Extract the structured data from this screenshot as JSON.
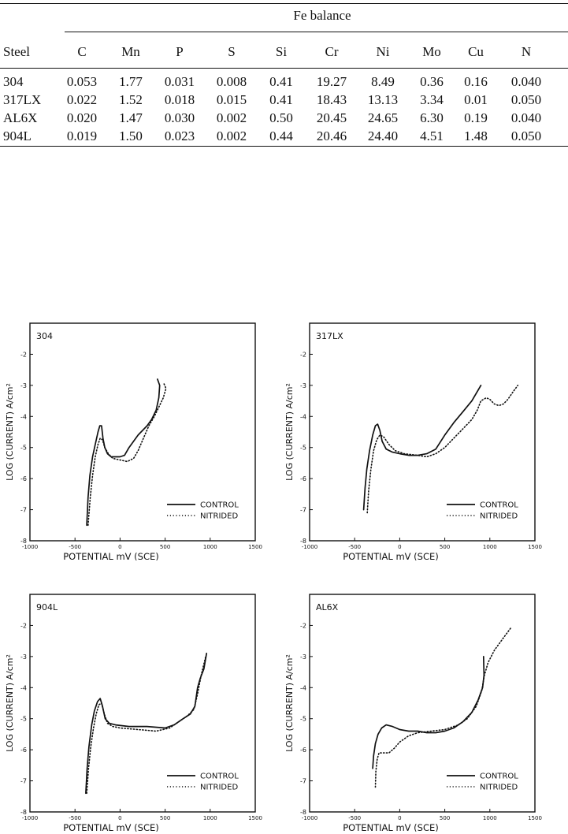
{
  "table": {
    "group_header": "Fe balance",
    "columns": [
      "Steel",
      "C",
      "Mn",
      "P",
      "S",
      "Si",
      "Cr",
      "Ni",
      "Mo",
      "Cu",
      "N"
    ],
    "rows": [
      [
        "304",
        "0.053",
        "1.77",
        "0.031",
        "0.008",
        "0.41",
        "19.27",
        "8.49",
        "0.36",
        "0.16",
        "0.040"
      ],
      [
        "317LX",
        "0.022",
        "1.52",
        "0.018",
        "0.015",
        "0.41",
        "18.43",
        "13.13",
        "3.34",
        "0.01",
        "0.050"
      ],
      [
        "AL6X",
        "0.020",
        "1.47",
        "0.030",
        "0.002",
        "0.50",
        "20.45",
        "24.65",
        "6.30",
        "0.19",
        "0.040"
      ],
      [
        "904L",
        "0.019",
        "1.50",
        "0.023",
        "0.002",
        "0.44",
        "20.46",
        "24.40",
        "4.51",
        "1.48",
        "0.050"
      ]
    ]
  },
  "chart_data": [
    {
      "type": "line",
      "title": "304",
      "xlabel": "POTENTIAL  mV (SCE)",
      "ylabel": "LOG (CURRENT) A/cm²",
      "xlim": [
        -1000,
        1500
      ],
      "ylim": [
        -8,
        -1
      ],
      "xticks": [
        "-1000",
        "-500",
        "0",
        "500",
        "1000",
        "1500"
      ],
      "yticks": [
        "-2",
        "-3",
        "-4",
        "-5",
        "-6",
        "-7",
        "-8"
      ],
      "legend": "bottom-right",
      "series": [
        {
          "name": "CONTROL",
          "style": "solid",
          "points": [
            [
              -370,
              -7.5
            ],
            [
              -355,
              -6.6
            ],
            [
              -335,
              -5.9
            ],
            [
              -305,
              -5.3
            ],
            [
              -275,
              -4.9
            ],
            [
              -245,
              -4.5
            ],
            [
              -225,
              -4.3
            ],
            [
              -205,
              -4.3
            ],
            [
              -190,
              -4.7
            ],
            [
              -170,
              -5.0
            ],
            [
              -140,
              -5.2
            ],
            [
              -100,
              -5.3
            ],
            [
              -50,
              -5.3
            ],
            [
              0,
              -5.3
            ],
            [
              50,
              -5.25
            ],
            [
              100,
              -5.0
            ],
            [
              150,
              -4.8
            ],
            [
              200,
              -4.6
            ],
            [
              250,
              -4.45
            ],
            [
              300,
              -4.3
            ],
            [
              350,
              -4.1
            ],
            [
              400,
              -3.8
            ],
            [
              430,
              -3.4
            ],
            [
              440,
              -3.0
            ],
            [
              415,
              -2.8
            ]
          ]
        },
        {
          "name": "NITRIDED",
          "style": "dotted",
          "points": [
            [
              -355,
              -7.5
            ],
            [
              -330,
              -6.6
            ],
            [
              -305,
              -5.9
            ],
            [
              -275,
              -5.3
            ],
            [
              -245,
              -4.9
            ],
            [
              -220,
              -4.7
            ],
            [
              -195,
              -4.75
            ],
            [
              -170,
              -5.0
            ],
            [
              -130,
              -5.2
            ],
            [
              -80,
              -5.35
            ],
            [
              0,
              -5.4
            ],
            [
              80,
              -5.45
            ],
            [
              150,
              -5.35
            ],
            [
              200,
              -5.1
            ],
            [
              260,
              -4.7
            ],
            [
              320,
              -4.3
            ],
            [
              380,
              -4.0
            ],
            [
              430,
              -3.7
            ],
            [
              480,
              -3.4
            ],
            [
              510,
              -3.1
            ],
            [
              480,
              -2.9
            ]
          ]
        }
      ]
    },
    {
      "type": "line",
      "title": "317LX",
      "xlabel": "POTENTIAL  mV (SCE)",
      "ylabel": "LOG (CURRENT) A/cm²",
      "xlim": [
        -1000,
        1500
      ],
      "ylim": [
        -8,
        -1
      ],
      "xticks": [
        "-1000",
        "-500",
        "0",
        "500",
        "1000",
        "1500"
      ],
      "yticks": [
        "-2",
        "-3",
        "-4",
        "-5",
        "-6",
        "-7",
        "-8"
      ],
      "legend": "bottom-right",
      "series": [
        {
          "name": "CONTROL",
          "style": "solid",
          "points": [
            [
              -400,
              -7.0
            ],
            [
              -385,
              -6.3
            ],
            [
              -365,
              -5.7
            ],
            [
              -335,
              -5.1
            ],
            [
              -300,
              -4.6
            ],
            [
              -270,
              -4.3
            ],
            [
              -245,
              -4.25
            ],
            [
              -220,
              -4.45
            ],
            [
              -195,
              -4.8
            ],
            [
              -150,
              -5.05
            ],
            [
              -80,
              -5.15
            ],
            [
              0,
              -5.2
            ],
            [
              100,
              -5.25
            ],
            [
              200,
              -5.25
            ],
            [
              300,
              -5.2
            ],
            [
              400,
              -5.05
            ],
            [
              500,
              -4.6
            ],
            [
              600,
              -4.2
            ],
            [
              700,
              -3.85
            ],
            [
              800,
              -3.5
            ],
            [
              900,
              -3.0
            ]
          ]
        },
        {
          "name": "NITRIDED",
          "style": "dotted",
          "points": [
            [
              -360,
              -7.1
            ],
            [
              -345,
              -6.4
            ],
            [
              -320,
              -5.7
            ],
            [
              -290,
              -5.1
            ],
            [
              -255,
              -4.75
            ],
            [
              -220,
              -4.6
            ],
            [
              -180,
              -4.65
            ],
            [
              -120,
              -4.9
            ],
            [
              -50,
              -5.1
            ],
            [
              50,
              -5.2
            ],
            [
              200,
              -5.25
            ],
            [
              300,
              -5.3
            ],
            [
              400,
              -5.2
            ],
            [
              500,
              -5.0
            ],
            [
              600,
              -4.7
            ],
            [
              700,
              -4.4
            ],
            [
              800,
              -4.1
            ],
            [
              860,
              -3.8
            ],
            [
              900,
              -3.5
            ],
            [
              960,
              -3.4
            ],
            [
              1000,
              -3.45
            ],
            [
              1050,
              -3.6
            ],
            [
              1100,
              -3.65
            ],
            [
              1150,
              -3.6
            ],
            [
              1200,
              -3.45
            ],
            [
              1260,
              -3.2
            ],
            [
              1310,
              -3.0
            ]
          ]
        }
      ]
    },
    {
      "type": "line",
      "title": "904L",
      "xlabel": "POTENTIAL  mV (SCE)",
      "ylabel": "LOG (CURRENT) A/cm²",
      "xlim": [
        -1000,
        1500
      ],
      "ylim": [
        -8,
        -1
      ],
      "xticks": [
        "-1000",
        "-500",
        "0",
        "500",
        "1000",
        "1500"
      ],
      "yticks": [
        "-2",
        "-3",
        "-4",
        "-5",
        "-6",
        "-7",
        "-8"
      ],
      "legend": "bottom-right",
      "series": [
        {
          "name": "CONTROL",
          "style": "solid",
          "points": [
            [
              -380,
              -7.4
            ],
            [
              -365,
              -6.6
            ],
            [
              -345,
              -5.9
            ],
            [
              -315,
              -5.2
            ],
            [
              -285,
              -4.75
            ],
            [
              -250,
              -4.45
            ],
            [
              -220,
              -4.35
            ],
            [
              -195,
              -4.6
            ],
            [
              -165,
              -5.0
            ],
            [
              -120,
              -5.15
            ],
            [
              -50,
              -5.2
            ],
            [
              100,
              -5.25
            ],
            [
              300,
              -5.25
            ],
            [
              500,
              -5.3
            ],
            [
              600,
              -5.2
            ],
            [
              700,
              -5.0
            ],
            [
              780,
              -4.85
            ],
            [
              830,
              -4.6
            ],
            [
              860,
              -4.0
            ],
            [
              890,
              -3.7
            ],
            [
              930,
              -3.4
            ],
            [
              960,
              -2.9
            ]
          ]
        },
        {
          "name": "NITRIDED",
          "style": "dotted",
          "points": [
            [
              -370,
              -7.4
            ],
            [
              -350,
              -6.6
            ],
            [
              -325,
              -5.9
            ],
            [
              -295,
              -5.3
            ],
            [
              -265,
              -4.85
            ],
            [
              -235,
              -4.55
            ],
            [
              -205,
              -4.5
            ],
            [
              -175,
              -4.85
            ],
            [
              -140,
              -5.15
            ],
            [
              -80,
              -5.25
            ],
            [
              0,
              -5.3
            ],
            [
              200,
              -5.35
            ],
            [
              400,
              -5.4
            ],
            [
              550,
              -5.3
            ],
            [
              650,
              -5.1
            ],
            [
              750,
              -4.9
            ],
            [
              820,
              -4.7
            ],
            [
              860,
              -4.2
            ],
            [
              900,
              -3.6
            ],
            [
              950,
              -3.0
            ]
          ]
        }
      ]
    },
    {
      "type": "line",
      "title": "AL6X",
      "xlabel": "POTENTIAL  mV (SCE)",
      "ylabel": "LOG (CURRENT) A/cm²",
      "xlim": [
        -1000,
        1500
      ],
      "ylim": [
        -8,
        -1
      ],
      "xticks": [
        "-1000",
        "-500",
        "0",
        "500",
        "1000",
        "1500"
      ],
      "yticks": [
        "-2",
        "-3",
        "-4",
        "-5",
        "-6",
        "-7",
        "-8"
      ],
      "legend": "bottom-right",
      "series": [
        {
          "name": "CONTROL",
          "style": "solid",
          "points": [
            [
              -300,
              -6.6
            ],
            [
              -290,
              -6.2
            ],
            [
              -270,
              -5.8
            ],
            [
              -240,
              -5.5
            ],
            [
              -200,
              -5.3
            ],
            [
              -150,
              -5.2
            ],
            [
              -80,
              -5.25
            ],
            [
              0,
              -5.35
            ],
            [
              100,
              -5.4
            ],
            [
              200,
              -5.4
            ],
            [
              300,
              -5.45
            ],
            [
              400,
              -5.45
            ],
            [
              500,
              -5.4
            ],
            [
              600,
              -5.3
            ],
            [
              700,
              -5.1
            ],
            [
              800,
              -4.8
            ],
            [
              870,
              -4.4
            ],
            [
              920,
              -4.0
            ],
            [
              935,
              -3.6
            ],
            [
              930,
              -3.0
            ]
          ]
        },
        {
          "name": "NITRIDED",
          "style": "dotted",
          "points": [
            [
              -270,
              -7.2
            ],
            [
              -265,
              -6.7
            ],
            [
              -250,
              -6.3
            ],
            [
              -230,
              -6.1
            ],
            [
              -180,
              -6.1
            ],
            [
              -120,
              -6.1
            ],
            [
              -60,
              -5.95
            ],
            [
              0,
              -5.75
            ],
            [
              100,
              -5.55
            ],
            [
              200,
              -5.45
            ],
            [
              350,
              -5.4
            ],
            [
              500,
              -5.35
            ],
            [
              650,
              -5.2
            ],
            [
              750,
              -5.0
            ],
            [
              850,
              -4.6
            ],
            [
              910,
              -4.1
            ],
            [
              940,
              -3.6
            ],
            [
              980,
              -3.2
            ],
            [
              1050,
              -2.8
            ],
            [
              1150,
              -2.4
            ],
            [
              1240,
              -2.05
            ]
          ]
        }
      ]
    }
  ]
}
